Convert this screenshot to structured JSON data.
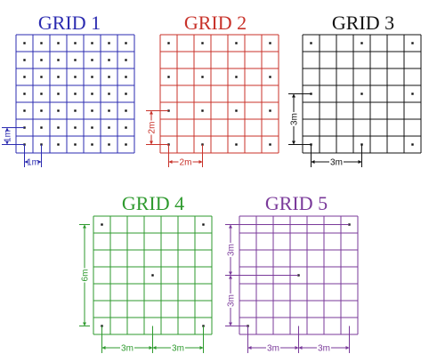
{
  "grids": [
    {
      "id": "grid1",
      "title": "GRID 1",
      "color": "#2b2bb0",
      "cells": 7,
      "spacing_m": 1,
      "dots": "every-cell-center",
      "dims": [
        {
          "axis": "vertical",
          "label": "1m",
          "cells": 1
        },
        {
          "axis": "horizontal",
          "label": "1m",
          "cells": 1
        }
      ]
    },
    {
      "id": "grid2",
      "title": "GRID 2",
      "color": "#c8322a",
      "cells": 7,
      "spacing_m": 2,
      "dots": "every-second-cell",
      "dims": [
        {
          "axis": "vertical",
          "label": "2m",
          "cells": 2
        },
        {
          "axis": "horizontal",
          "label": "2m",
          "cells": 2
        }
      ]
    },
    {
      "id": "grid3",
      "title": "GRID 3",
      "color": "#111111",
      "cells": 7,
      "spacing_m": 3,
      "dots": "every-third-cell",
      "dims": [
        {
          "axis": "vertical",
          "label": "3m",
          "cells": 3
        },
        {
          "axis": "horizontal",
          "label": "3m",
          "cells": 3
        }
      ]
    },
    {
      "id": "grid4",
      "title": "GRID 4",
      "color": "#2e9a2e",
      "cells": 7,
      "spacing_m": 3,
      "dots": "corners-and-center",
      "dims": [
        {
          "axis": "vertical",
          "label": "6m",
          "cells": 6
        },
        {
          "axis": "horizontal",
          "label": "3m",
          "cells": 3
        },
        {
          "axis": "horizontal",
          "label": "3m",
          "cells": 3
        }
      ]
    },
    {
      "id": "grid5",
      "title": "GRID 5",
      "color": "#7a3a9a",
      "cells": 7,
      "spacing_m": 3,
      "dots": "staggered",
      "dims": [
        {
          "axis": "vertical",
          "label": "3m",
          "cells": 3
        },
        {
          "axis": "vertical",
          "label": "3m",
          "cells": 3
        },
        {
          "axis": "horizontal",
          "label": "3m",
          "cells": 3
        },
        {
          "axis": "horizontal",
          "label": "3m",
          "cells": 3
        }
      ]
    }
  ]
}
